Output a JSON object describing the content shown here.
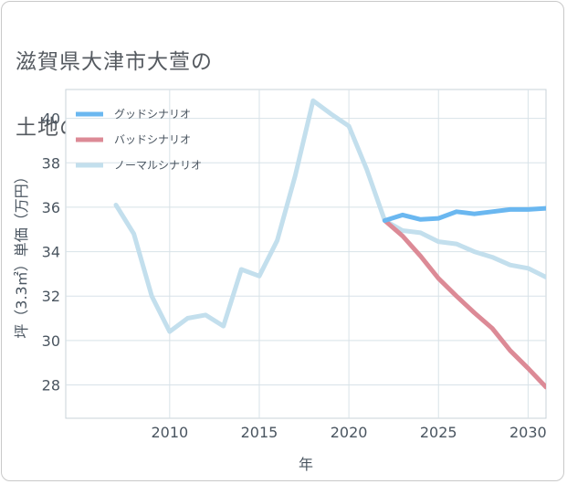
{
  "title_lines": [
    "滋賀県大津市大萱の",
    "土地の価格推移"
  ],
  "chart_data": {
    "type": "line",
    "xlabel": "年",
    "ylabel": "坪（3.3㎡）単価（万円）",
    "xlim": [
      2004.2,
      2031
    ],
    "ylim": [
      26.5,
      41.3
    ],
    "xticks": [
      2010,
      2015,
      2020,
      2025,
      2030
    ],
    "yticks": [
      28,
      30,
      32,
      34,
      36,
      38,
      40
    ],
    "legend_position": "top-left",
    "series": [
      {
        "name": "グッドシナリオ",
        "color": "#6ab7f0",
        "x": [
          2022,
          2023,
          2024,
          2025,
          2026,
          2027,
          2028,
          2029,
          2030,
          2031
        ],
        "values": [
          35.4,
          35.65,
          35.45,
          35.5,
          35.8,
          35.7,
          35.8,
          35.9,
          35.9,
          35.95
        ]
      },
      {
        "name": "バッドシナリオ",
        "color": "#dc8a96",
        "x": [
          2022,
          2023,
          2024,
          2025,
          2026,
          2027,
          2028,
          2029,
          2030,
          2031
        ],
        "values": [
          35.4,
          34.7,
          33.8,
          32.8,
          32.0,
          31.25,
          30.55,
          29.55,
          28.75,
          27.9
        ]
      },
      {
        "name": "ノーマルシナリオ",
        "color": "#c3dfed",
        "x": [
          2007,
          2008,
          2009,
          2010,
          2011,
          2012,
          2013,
          2014,
          2015,
          2016,
          2017,
          2018,
          2019,
          2020,
          2021,
          2022,
          2023,
          2024,
          2025,
          2026,
          2027,
          2028,
          2029,
          2030,
          2031
        ],
        "values": [
          36.1,
          34.8,
          32.0,
          30.4,
          31.0,
          31.15,
          30.65,
          33.2,
          32.9,
          34.5,
          37.4,
          40.8,
          40.2,
          39.65,
          37.7,
          35.4,
          34.95,
          34.85,
          34.45,
          34.35,
          34.0,
          33.75,
          33.4,
          33.25,
          32.85
        ]
      }
    ]
  }
}
